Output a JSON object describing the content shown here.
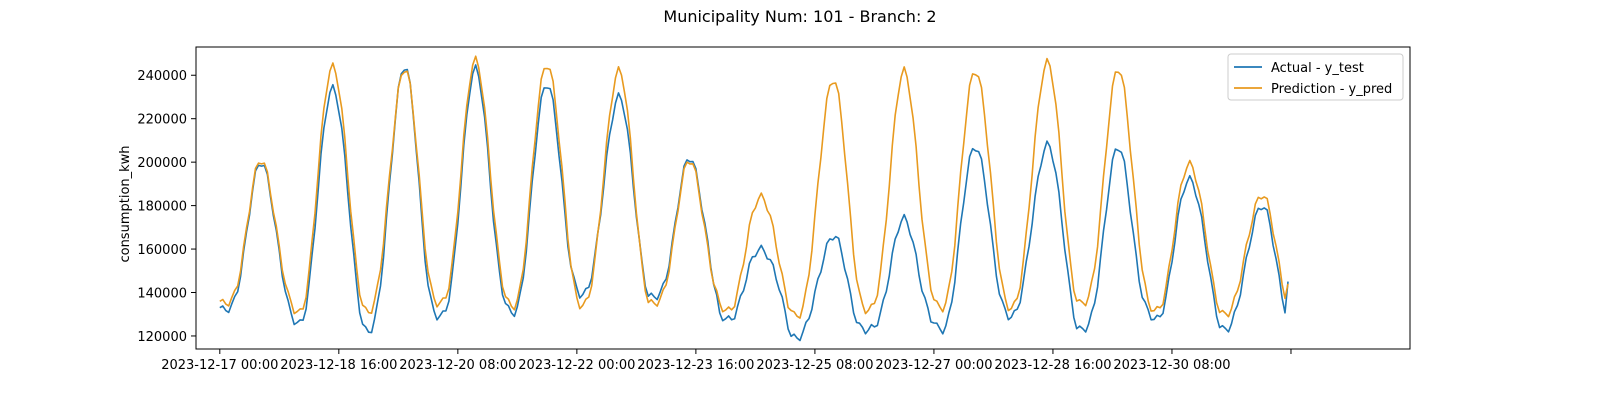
{
  "chart_data": {
    "type": "line",
    "title": "Municipality Num: 101 - Branch: 2",
    "xlabel": "",
    "ylabel": "consumption_kwh",
    "x_start": "2023-12-17 00:00",
    "x_end": "2023-12-31 23:00",
    "x_step": "1 hour",
    "ylim": [
      114000,
      253000
    ],
    "yticks": [
      120000,
      140000,
      160000,
      180000,
      200000,
      220000,
      240000
    ],
    "xticks": [
      "2023-12-17 00:00",
      "2023-12-18 16:00",
      "2023-12-20 08:00",
      "2023-12-22 00:00",
      "2023-12-23 16:00",
      "2023-12-25 08:00",
      "2023-12-27 00:00",
      "2023-12-28 16:00",
      "2023-12-30 08:00",
      ""
    ],
    "grid": false,
    "legend": "top-right",
    "series": [
      {
        "name": "Actual - y_test",
        "color": "#1f77b4",
        "daily_profile": [
          {
            "date": "2023-12-17",
            "min": 131000,
            "max": 199000
          },
          {
            "date": "2023-12-18",
            "min": 126000,
            "max": 235000
          },
          {
            "date": "2023-12-19",
            "min": 123000,
            "max": 244000
          },
          {
            "date": "2023-12-20",
            "min": 128000,
            "max": 242000
          },
          {
            "date": "2023-12-21",
            "min": 131000,
            "max": 237000
          },
          {
            "date": "2023-12-22",
            "min": 140000,
            "max": 230000
          },
          {
            "date": "2023-12-23",
            "min": 137000,
            "max": 201000
          },
          {
            "date": "2023-12-24",
            "min": 128000,
            "max": 161000
          },
          {
            "date": "2023-12-25",
            "min": 120000,
            "max": 166000
          },
          {
            "date": "2023-12-26",
            "min": 122000,
            "max": 173000
          },
          {
            "date": "2023-12-27",
            "min": 123000,
            "max": 208000
          },
          {
            "date": "2023-12-28",
            "min": 130000,
            "max": 208000
          },
          {
            "date": "2023-12-29",
            "min": 122000,
            "max": 206000
          },
          {
            "date": "2023-12-30",
            "min": 128000,
            "max": 193000
          },
          {
            "date": "2023-12-31",
            "min": 124000,
            "max": 180000
          }
        ],
        "end_value": 145000
      },
      {
        "name": "Prediction - y_pred",
        "color": "#e89a1f",
        "daily_profile": [
          {
            "date": "2023-12-17",
            "min": 134000,
            "max": 200000
          },
          {
            "date": "2023-12-18",
            "min": 131000,
            "max": 245000
          },
          {
            "date": "2023-12-19",
            "min": 132000,
            "max": 243000
          },
          {
            "date": "2023-12-20",
            "min": 134000,
            "max": 246000
          },
          {
            "date": "2023-12-21",
            "min": 134000,
            "max": 246000
          },
          {
            "date": "2023-12-22",
            "min": 135000,
            "max": 242000
          },
          {
            "date": "2023-12-23",
            "min": 134000,
            "max": 200000
          },
          {
            "date": "2023-12-24",
            "min": 132000,
            "max": 185000
          },
          {
            "date": "2023-12-25",
            "min": 130000,
            "max": 238000
          },
          {
            "date": "2023-12-26",
            "min": 131000,
            "max": 241000
          },
          {
            "date": "2023-12-27",
            "min": 133000,
            "max": 243000
          },
          {
            "date": "2023-12-28",
            "min": 134000,
            "max": 246000
          },
          {
            "date": "2023-12-29",
            "min": 134000,
            "max": 242000
          },
          {
            "date": "2023-12-30",
            "min": 132000,
            "max": 200000
          },
          {
            "date": "2023-12-31",
            "min": 131000,
            "max": 185000
          }
        ],
        "end_value": 144000
      }
    ]
  }
}
